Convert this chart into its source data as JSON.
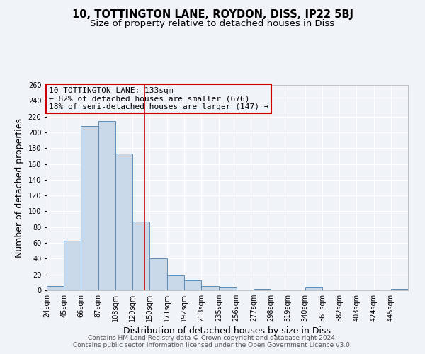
{
  "title": "10, TOTTINGTON LANE, ROYDON, DISS, IP22 5BJ",
  "subtitle": "Size of property relative to detached houses in Diss",
  "xlabel": "Distribution of detached houses by size in Diss",
  "ylabel": "Number of detached properties",
  "footer_line1": "Contains HM Land Registry data © Crown copyright and database right 2024.",
  "footer_line2": "Contains public sector information licensed under the Open Government Licence v3.0.",
  "bin_labels": [
    "24sqm",
    "45sqm",
    "66sqm",
    "87sqm",
    "108sqm",
    "129sqm",
    "150sqm",
    "171sqm",
    "192sqm",
    "213sqm",
    "235sqm",
    "256sqm",
    "277sqm",
    "298sqm",
    "319sqm",
    "340sqm",
    "361sqm",
    "382sqm",
    "403sqm",
    "424sqm",
    "445sqm"
  ],
  "bin_left_edges": [
    13.5,
    34.5,
    55.5,
    76.5,
    97.5,
    118.5,
    139.5,
    160.5,
    181.5,
    202.5,
    224.5,
    245.5,
    266.5,
    287.5,
    308.5,
    329.5,
    350.5,
    371.5,
    392.5,
    413.5,
    434.5
  ],
  "bin_right_edges": [
    34.5,
    55.5,
    76.5,
    97.5,
    118.5,
    139.5,
    160.5,
    181.5,
    202.5,
    224.5,
    245.5,
    266.5,
    287.5,
    308.5,
    329.5,
    350.5,
    371.5,
    392.5,
    413.5,
    434.5,
    455.5
  ],
  "bar_values": [
    5,
    63,
    208,
    214,
    173,
    87,
    40,
    19,
    13,
    5,
    4,
    0,
    2,
    0,
    0,
    4,
    0,
    0,
    0,
    0,
    2
  ],
  "bar_face_color": "#c8d8e8",
  "bar_edge_color": "#5b8db8",
  "property_size": 133,
  "vline_color": "#cc0000",
  "annotation_text_line1": "10 TOTTINGTON LANE: 133sqm",
  "annotation_text_line2": "← 82% of detached houses are smaller (676)",
  "annotation_text_line3": "18% of semi-detached houses are larger (147) →",
  "annotation_box_edgecolor": "#cc0000",
  "ylim": [
    0,
    260
  ],
  "yticks": [
    0,
    20,
    40,
    60,
    80,
    100,
    120,
    140,
    160,
    180,
    200,
    220,
    240,
    260
  ],
  "background_color": "#f0f4f8",
  "grid_color": "#ffffff",
  "title_fontsize": 10.5,
  "subtitle_fontsize": 9.5,
  "xlabel_fontsize": 9,
  "ylabel_fontsize": 9,
  "tick_fontsize": 7,
  "annotation_fontsize": 8,
  "footer_fontsize": 6.5
}
